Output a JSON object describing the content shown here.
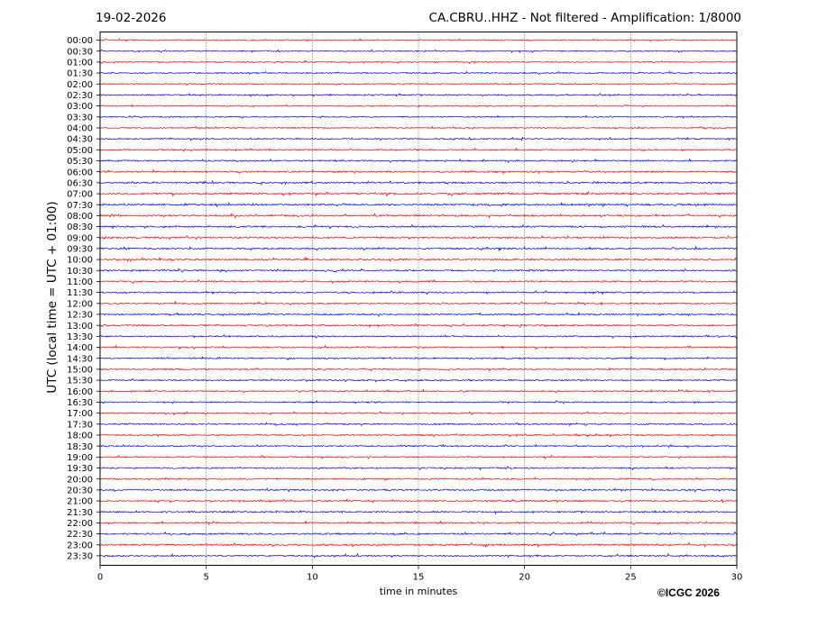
{
  "header": {
    "date": "19-02-2026",
    "title": "CA.CBRU..HHZ - Not filtered - Amplification: 1/8000"
  },
  "footer": {
    "credit": "©ICGC 2026"
  },
  "chart_data": {
    "type": "line",
    "title": "CA.CBRU..HHZ - Not filtered - Amplification: 1/8000",
    "xlabel": "time in minutes",
    "ylabel": "UTC (local time = UTC + 01:00)",
    "xlim": [
      0,
      30
    ],
    "x_ticks": [
      0,
      5,
      10,
      15,
      20,
      25,
      30
    ],
    "x_gridlines": [
      5,
      10,
      15,
      20,
      25
    ],
    "grid": "vertical dotted",
    "legend": "none",
    "row_labels": [
      "00:00",
      "00:30",
      "01:00",
      "01:30",
      "02:00",
      "02:30",
      "03:00",
      "03:30",
      "04:00",
      "04:30",
      "05:00",
      "05:30",
      "06:00",
      "06:30",
      "07:00",
      "07:30",
      "08:00",
      "08:30",
      "09:00",
      "09:30",
      "10:00",
      "10:30",
      "11:00",
      "11:30",
      "12:00",
      "12:30",
      "13:00",
      "13:30",
      "14:00",
      "14:30",
      "15:00",
      "15:30",
      "16:00",
      "16:30",
      "17:00",
      "17:30",
      "18:00",
      "18:30",
      "19:00",
      "19:30",
      "20:00",
      "20:30",
      "21:00",
      "21:30",
      "22:00",
      "22:30",
      "23:00",
      "23:30"
    ],
    "trace_colors": [
      "#ff0000",
      "#0000ff"
    ],
    "trace_color_pattern": "alternating, starting red at 00:00",
    "trace_noise_levels": [
      0.6,
      0.6,
      0.6,
      0.65,
      0.6,
      0.7,
      0.6,
      0.6,
      0.6,
      0.65,
      0.7,
      0.75,
      0.8,
      0.85,
      0.95,
      0.9,
      0.9,
      0.85,
      0.85,
      0.8,
      0.8,
      0.8,
      0.8,
      0.75,
      0.75,
      0.75,
      0.75,
      0.7,
      0.75,
      0.7,
      0.7,
      0.7,
      0.7,
      0.7,
      0.7,
      0.7,
      0.7,
      0.7,
      0.7,
      0.7,
      0.7,
      0.75,
      0.75,
      0.75,
      0.75,
      0.8,
      0.85,
      0.8
    ]
  }
}
